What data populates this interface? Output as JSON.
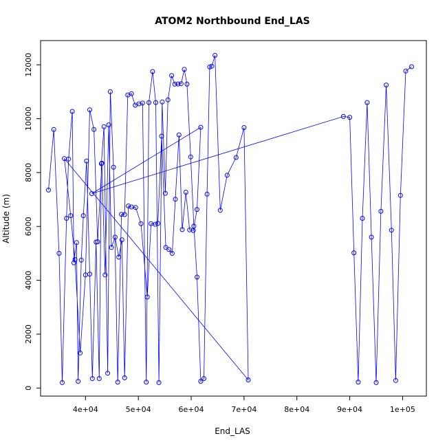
{
  "chart_data": {
    "type": "line",
    "title": "ATOM2 Northbound End_LAS",
    "xlabel": "End_LAS",
    "ylabel": "Altitude (m)",
    "xlim": [
      31500,
      104500
    ],
    "ylim": [
      -300,
      12900
    ],
    "x_ticks": [
      40000,
      50000,
      60000,
      70000,
      80000,
      90000,
      100000
    ],
    "x_tick_labels": [
      "4e+04",
      "5e+04",
      "6e+04",
      "7e+04",
      "8e+04",
      "9e+04",
      "1e+05"
    ],
    "y_ticks": [
      0,
      2000,
      4000,
      6000,
      8000,
      10000,
      12000
    ],
    "y_tick_labels": [
      "0",
      "2000",
      "4000",
      "6000",
      "8000",
      "10000",
      "12000"
    ],
    "series": [
      {
        "color": "#0000ff",
        "marker": "open-circle",
        "x": [
          33000,
          34000,
          35000,
          35600,
          36400,
          36800,
          37500,
          37800,
          38300,
          38600,
          39200,
          39600,
          40200,
          40800,
          41300,
          42000,
          42600,
          43000,
          43500,
          44200,
          44700,
          45300,
          46100,
          46800,
          47400,
          48000,
          48700,
          49400,
          50100,
          50800,
          51500,
          52000,
          52700,
          53300,
          53900,
          54500,
          55100,
          55600,
          56300,
          56900,
          57500,
          58100,
          58700,
          59200,
          59900,
          60500,
          61100,
          61800,
          62400,
          63000,
          63500,
          63900,
          64500,
          65500,
          66800,
          68500,
          70000,
          70800,
          36000,
          37200,
          38000,
          39000,
          40000,
          40800,
          41600,
          42300,
          43100,
          43700,
          44400,
          44900,
          45600,
          46300,
          46900,
          47400,
          48100,
          48700,
          49500,
          50500,
          51700,
          52400,
          53200,
          53700,
          54400,
          55200,
          55800,
          56400,
          57000,
          57700,
          58300,
          59000,
          59700,
          60400,
          61100,
          61800,
          41200,
          88800,
          90000,
          90800,
          91600,
          92400,
          93300,
          94100,
          95000,
          95900,
          96900,
          97900,
          98700,
          99600,
          100600,
          101700
        ],
        "y": [
          7350,
          9600,
          5000,
          200,
          6300,
          8500,
          10270,
          4650,
          5400,
          250,
          4750,
          6400,
          8430,
          4230,
          350,
          5420,
          350,
          8330,
          9700,
          550,
          11000,
          8200,
          220,
          6450,
          6440,
          10880,
          10930,
          10500,
          10550,
          10580,
          220,
          10600,
          11750,
          10600,
          200,
          10620,
          7230,
          10700,
          11600,
          11280,
          11290,
          11300,
          11830,
          11280,
          8580,
          6010,
          4120,
          250,
          350,
          7200,
          11920,
          11950,
          12350,
          6600,
          7900,
          8560,
          9670,
          300,
          8520,
          6400,
          4770,
          1300,
          4200,
          10330,
          9600,
          5430,
          8350,
          4200,
          9770,
          5220,
          5600,
          4860,
          5500,
          380,
          6760,
          6720,
          6700,
          6100,
          3380,
          6100,
          6080,
          6110,
          9350,
          5220,
          5140,
          5000,
          7010,
          9400,
          5880,
          7270,
          5870,
          5850,
          6630,
          9680,
          7220,
          10080,
          10050,
          5020,
          220,
          6300,
          10600,
          5600,
          200,
          6560,
          11250,
          5860,
          280,
          7150,
          11770,
          11930
        ]
      }
    ]
  }
}
